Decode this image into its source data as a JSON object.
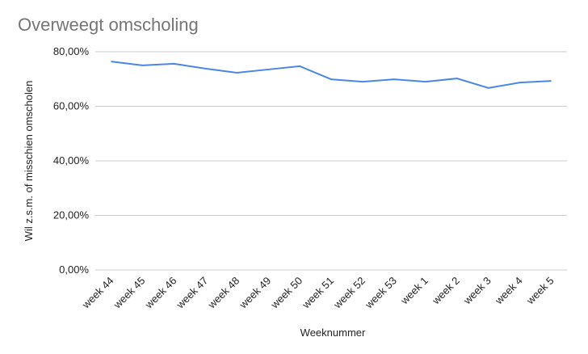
{
  "chart_data": {
    "type": "line",
    "title": "Overweegt omscholing",
    "x_label": "Weeknummer",
    "y_label": "Wil z.s.m. of misschien omscholen",
    "categories": [
      "week 44",
      "week 45",
      "week 46",
      "week 47",
      "week 48",
      "week 49",
      "week 50",
      "week 51",
      "week 52",
      "week 53",
      "week 1",
      "week 2",
      "week 3",
      "week 4",
      "week 5"
    ],
    "series": [
      {
        "name": "Wil z.s.m. of misschien omscholen",
        "color": "#4a86e8",
        "values": [
          76.4,
          75.0,
          75.6,
          73.8,
          72.3,
          73.5,
          74.7,
          69.9,
          69.0,
          69.9,
          69.0,
          70.2,
          66.7,
          68.7,
          69.3
        ]
      }
    ],
    "ylim": [
      0,
      80
    ],
    "yticks": [
      {
        "value": 0,
        "label": "0,00%"
      },
      {
        "value": 20,
        "label": "20,00%"
      },
      {
        "value": 40,
        "label": "40,00%"
      },
      {
        "value": 60,
        "label": "60,00%"
      },
      {
        "value": 80,
        "label": "80,00%"
      }
    ],
    "grid": true
  }
}
